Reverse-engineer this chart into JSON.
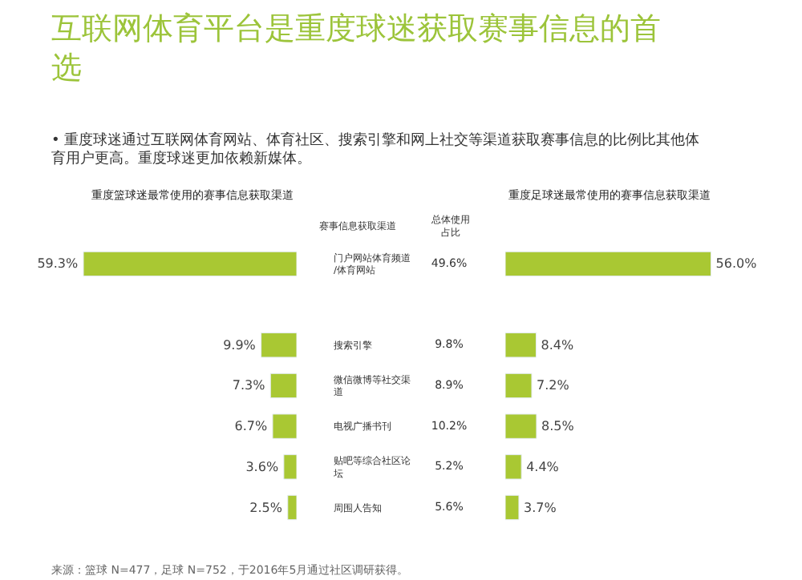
{
  "chart_data": [
    {
      "type": "other",
      "title": "互联网体育平台是重度球迷获取赛事信息的首选",
      "subtitle": "• 重度球迷通过互联网体育网站、体育社区、搜索引擎和网上社交等渠道获取赛事信息的比例比其他体育用户更高。重度球迷更加依赖新媒体。",
      "annotations": [
        "来源：篮球 N=477，足球 N=752，于2016年5月通过社区调研获得。"
      ]
    },
    {
      "type": "bar",
      "orientation": "horizontal",
      "title": "重度篮球迷最常使用的赛事信息获取渠道",
      "ylabel": "赛事信息获取渠道",
      "categories": [
        "门户网站体育频道/体育网站",
        null,
        "搜索引擎",
        "微信微博等社交渠道",
        "电视广播书刊",
        "贴吧等综合社区论坛",
        "周围人告知"
      ],
      "values": [
        59.3,
        null,
        9.9,
        7.3,
        6.7,
        3.6,
        2.5
      ],
      "value_labels": [
        "59.3%",
        null,
        "9.9%",
        "7.3%",
        "6.7%",
        "3.6%",
        "2.5%"
      ],
      "color": "#a9c833",
      "tick_labels": "y"
    },
    {
      "type": "other",
      "title": "总体使用占比",
      "values": [
        49.6,
        null,
        9.8,
        8.9,
        10.2,
        5.2,
        5.6
      ],
      "value_labels": [
        "49.6%",
        null,
        "9.8%",
        "8.9%",
        "10.2%",
        "5.2%",
        "5.6%"
      ]
    },
    {
      "type": "bar",
      "orientation": "horizontal",
      "title": "重度足球迷最常使用的赛事信息获取渠道",
      "categories": [
        "门户网站体育频道/体育网站",
        null,
        "搜索引擎",
        "微信微博等社交渠道",
        "电视广播书刊",
        "贴吧等综合社区论坛",
        "周围人告知"
      ],
      "values": [
        56.0,
        null,
        8.4,
        7.2,
        8.5,
        4.4,
        3.7
      ],
      "value_labels": [
        "56.0%",
        null,
        "8.4%",
        "7.2%",
        "8.5%",
        "4.4%",
        "3.7%"
      ],
      "color": "#a9c833",
      "tick_labels": false
    }
  ]
}
